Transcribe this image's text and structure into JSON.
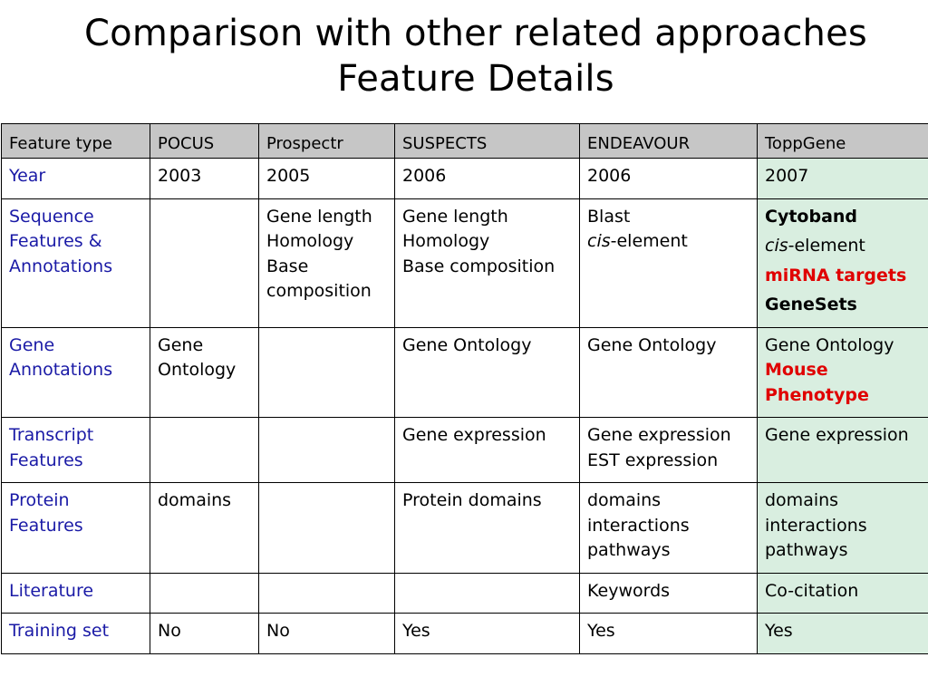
{
  "title": {
    "line1": "Comparison with other related approaches",
    "line2": "Feature Details"
  },
  "table": {
    "headers": [
      "Feature type",
      "POCUS",
      "Prospectr",
      "SUSPECTS",
      "ENDEAVOUR",
      "ToppGene"
    ],
    "rows": {
      "year": {
        "label": "Year",
        "pocus": "2003",
        "prospectr": "2005",
        "suspects": "2006",
        "endeavour": "2006",
        "toppgene": "2007"
      },
      "sequence": {
        "label": "Sequence Features & Annotations",
        "prospectr": [
          "Gene length",
          "Homology",
          "Base composition"
        ],
        "suspects": [
          "Gene length",
          "Homology",
          "Base composition"
        ],
        "endeavour": {
          "l1": "Blast",
          "cis": "cis",
          "rest": "-element"
        },
        "toppgene": {
          "cytoband": "Cytoband",
          "cis": "cis",
          "rest": "-element",
          "mirna": "miRNA targets",
          "genesets": "GeneSets"
        }
      },
      "gene_annotations": {
        "label": "Gene Annotations",
        "pocus": "Gene Ontology",
        "suspects": "Gene Ontology",
        "endeavour": "Gene Ontology",
        "toppgene": {
          "go": "Gene Ontology",
          "mp": "Mouse Phenotype"
        }
      },
      "transcript": {
        "label": "Transcript Features",
        "suspects": "Gene expression",
        "endeavour": [
          "Gene expression",
          "EST expression"
        ],
        "toppgene": "Gene expression"
      },
      "protein": {
        "label": "Protein Features",
        "pocus": "domains",
        "suspects": "Protein domains",
        "endeavour": [
          "domains",
          "interactions",
          "pathways"
        ],
        "toppgene": [
          "domains",
          "interactions",
          "pathways"
        ]
      },
      "literature": {
        "label": "Literature",
        "endeavour": "Keywords",
        "toppgene": "Co-citation"
      },
      "training": {
        "label": "Training set",
        "pocus": "No",
        "prospectr": "No",
        "suspects": "Yes",
        "endeavour": "Yes",
        "toppgene": "Yes"
      }
    }
  },
  "colors": {
    "row_label": "#1a1aa6",
    "header_bg": "#c6c6c6",
    "toppgene_bg": "#d9eee0",
    "highlight": "#e00000"
  }
}
